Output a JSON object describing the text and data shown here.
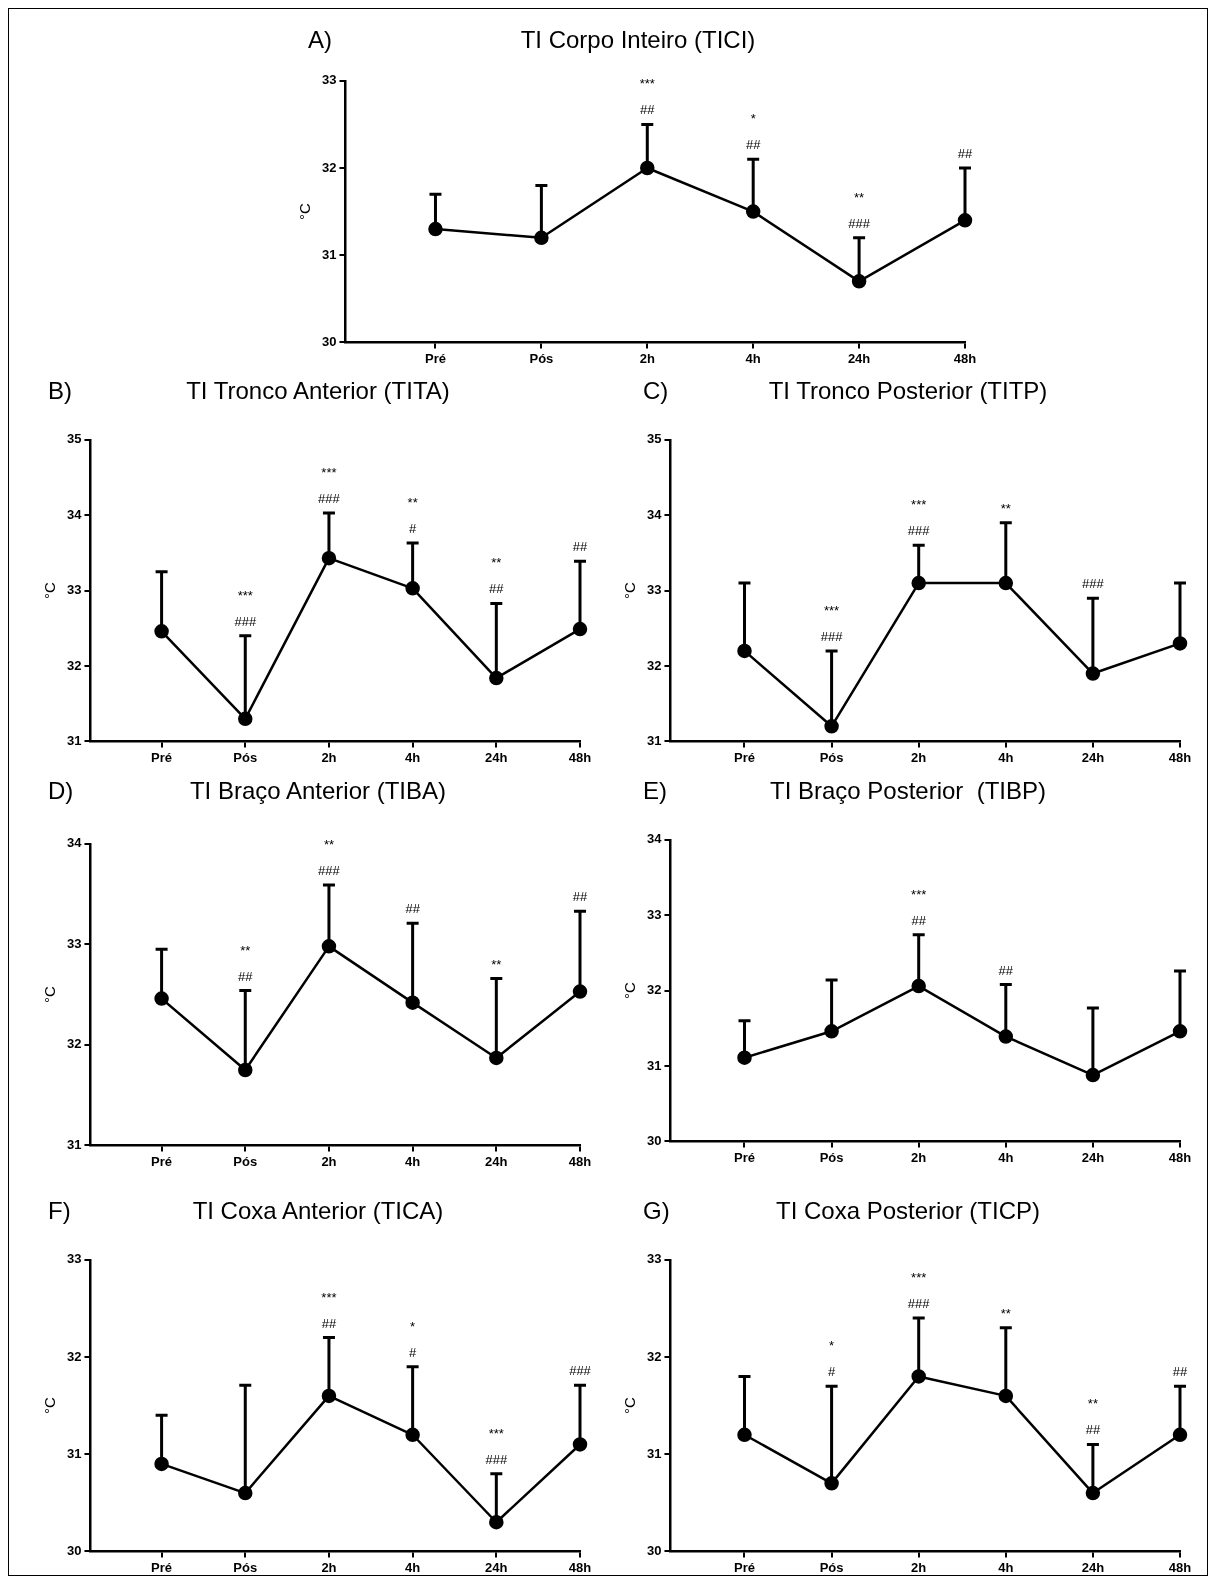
{
  "chart_data": [
    {
      "type": "line",
      "title": "TI Corpo Inteiro (TICI)",
      "ylabel": "°C",
      "categories": [
        "Pré",
        "Pós",
        "2h",
        "4h",
        "24h",
        "48h"
      ],
      "grid": false,
      "marker": "circle",
      "legend": false,
      "ylim": [
        30,
        33
      ],
      "yticks": [
        30,
        31,
        32,
        33
      ],
      "annotations": [
        "A)",
        "***",
        "##",
        "*",
        "##",
        "**",
        "###",
        "##"
      ],
      "series": [
        {
          "color": "#000000",
          "values": [
            31.3,
            31.2,
            32.0,
            31.5,
            30.7,
            31.4
          ],
          "errors": [
            [
              31.3,
              31.7
            ],
            [
              31.2,
              31.8
            ],
            [
              32.0,
              32.5
            ],
            [
              31.5,
              32.1
            ],
            [
              30.7,
              31.2
            ],
            [
              31.4,
              32.0
            ]
          ]
        }
      ]
    },
    {
      "type": "line",
      "title": "TI Tronco Anterior (TITA)",
      "ylabel": "°C",
      "categories": [
        "Pré",
        "Pós",
        "2h",
        "4h",
        "24h",
        "48h"
      ],
      "grid": false,
      "marker": "circle",
      "legend": false,
      "ylim": [
        31,
        35
      ],
      "yticks": [
        31,
        32,
        33,
        34,
        35
      ],
      "annotations": [
        "B)",
        "***",
        "###",
        "***",
        "###",
        "**",
        "#",
        "**",
        "##",
        "##"
      ],
      "series": [
        {
          "color": "#000000",
          "values": [
            32.46,
            31.3,
            33.43,
            33.03,
            31.84,
            32.49
          ],
          "errors": [
            [
              32.46,
              33.25
            ],
            [
              31.3,
              32.4
            ],
            [
              33.43,
              34.03
            ],
            [
              33.03,
              33.63
            ],
            [
              31.84,
              32.83
            ],
            [
              32.49,
              33.39
            ]
          ]
        }
      ]
    },
    {
      "type": "line",
      "title": "TI Tronco Posterior (TITP)",
      "ylabel": "°C",
      "categories": [
        "Pré",
        "Pós",
        "2h",
        "4h",
        "24h",
        "48h"
      ],
      "grid": false,
      "marker": "circle",
      "legend": false,
      "ylim": [
        31,
        35
      ],
      "yticks": [
        31,
        32,
        33,
        34,
        35
      ],
      "annotations": [
        "C)",
        "***",
        "###",
        "***",
        "###",
        "**",
        "###"
      ],
      "series": [
        {
          "color": "#000000",
          "values": [
            32.2,
            31.2,
            33.1,
            33.1,
            31.9,
            32.3
          ],
          "errors": [
            [
              32.2,
              33.1
            ],
            [
              31.2,
              32.2
            ],
            [
              33.1,
              33.6
            ],
            [
              33.1,
              33.9
            ],
            [
              31.9,
              32.9
            ],
            [
              32.3,
              33.1
            ]
          ]
        }
      ]
    },
    {
      "type": "line",
      "title": "TI Braço Anterior (TIBA)",
      "ylabel": "°C",
      "categories": [
        "Pré",
        "Pós",
        "2h",
        "4h",
        "24h",
        "48h"
      ],
      "grid": false,
      "marker": "circle",
      "legend": false,
      "ylim": [
        31,
        34
      ],
      "yticks": [
        31,
        32,
        33,
        34
      ],
      "annotations": [
        "D)",
        "**",
        "##",
        "**",
        "###",
        "##",
        "**",
        "##"
      ],
      "series": [
        {
          "color": "#000000",
          "values": [
            32.46,
            31.75,
            32.98,
            32.42,
            31.87,
            32.53
          ],
          "errors": [
            [
              32.46,
              32.95
            ],
            [
              31.75,
              32.54
            ],
            [
              32.98,
              33.59
            ],
            [
              32.42,
              33.21
            ],
            [
              31.87,
              32.66
            ],
            [
              32.53,
              33.33
            ]
          ]
        }
      ]
    },
    {
      "type": "line",
      "title": "TI Braço Posterior  (TIBP)",
      "ylabel": "°C",
      "categories": [
        "Pré",
        "Pós",
        "2h",
        "4h",
        "24h",
        "48h"
      ],
      "grid": false,
      "marker": "circle",
      "legend": false,
      "ylim": [
        30,
        34
      ],
      "yticks": [
        30,
        31,
        32,
        33,
        34
      ],
      "annotations": [
        "E)",
        "***",
        "##",
        "##"
      ],
      "series": [
        {
          "color": "#000000",
          "values": [
            31.11,
            31.46,
            32.06,
            31.39,
            30.88,
            31.46
          ],
          "errors": [
            [
              31.11,
              31.6
            ],
            [
              31.46,
              32.14
            ],
            [
              32.06,
              32.74
            ],
            [
              31.39,
              32.08
            ],
            [
              30.88,
              31.77
            ],
            [
              31.46,
              32.26
            ]
          ]
        }
      ]
    },
    {
      "type": "line",
      "title": "TI Coxa Anterior (TICA)",
      "ylabel": "°C",
      "categories": [
        "Pré",
        "Pós",
        "2h",
        "4h",
        "24h",
        "48h"
      ],
      "grid": false,
      "marker": "circle",
      "legend": false,
      "ylim": [
        30,
        33
      ],
      "yticks": [
        30,
        31,
        32,
        33
      ],
      "annotations": [
        "F)",
        "***",
        "##",
        "*",
        "#",
        "***",
        "###",
        "###"
      ],
      "series": [
        {
          "color": "#000000",
          "values": [
            30.9,
            30.6,
            31.6,
            31.2,
            30.3,
            31.1
          ],
          "errors": [
            [
              30.9,
              31.4
            ],
            [
              30.6,
              31.71
            ],
            [
              31.6,
              32.2
            ],
            [
              31.2,
              31.9
            ],
            [
              30.3,
              30.8
            ],
            [
              31.1,
              31.71
            ]
          ]
        }
      ]
    },
    {
      "type": "line",
      "title": "TI Coxa Posterior (TICP)",
      "ylabel": "°C",
      "categories": [
        "Pré",
        "Pós",
        "2h",
        "4h",
        "24h",
        "48h"
      ],
      "grid": false,
      "marker": "circle",
      "legend": false,
      "ylim": [
        30,
        33
      ],
      "yticks": [
        30,
        31,
        32,
        33
      ],
      "annotations": [
        "G)",
        "*",
        "#",
        "***",
        "###",
        "**",
        "**",
        "##",
        "##"
      ],
      "series": [
        {
          "color": "#000000",
          "values": [
            31.2,
            30.7,
            31.8,
            31.6,
            30.6,
            31.2
          ],
          "errors": [
            [
              31.2,
              31.8
            ],
            [
              30.7,
              31.7
            ],
            [
              31.8,
              32.4
            ],
            [
              31.6,
              32.3
            ],
            [
              30.6,
              31.1
            ],
            [
              31.2,
              31.7
            ]
          ]
        }
      ]
    }
  ]
}
